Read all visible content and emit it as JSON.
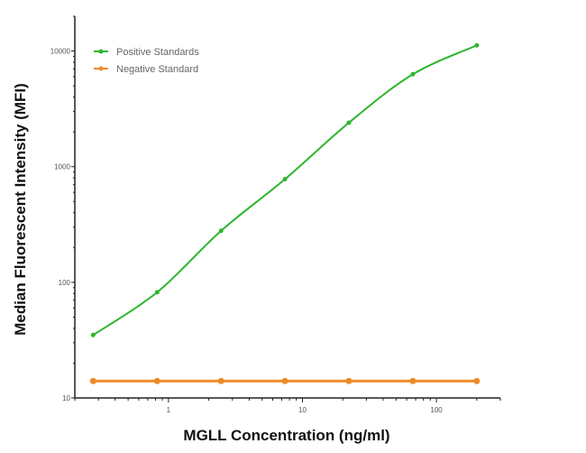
{
  "chart_data": {
    "type": "line",
    "title": "",
    "xlabel": "MGLL Concentration (ng/ml)",
    "ylabel": "Median  Fluorescent Intensity  (MFI)",
    "x_scale": "log",
    "y_scale": "log",
    "xlim": [
      0.2,
      300
    ],
    "ylim": [
      10,
      20000
    ],
    "x_ticks": [
      {
        "v": 1,
        "label": "1"
      },
      {
        "v": 10,
        "label": "10"
      },
      {
        "v": 100,
        "label": "100"
      }
    ],
    "y_ticks": [
      {
        "v": 10,
        "label": "10"
      },
      {
        "v": 100,
        "label": "100"
      },
      {
        "v": 1000,
        "label": "1000"
      },
      {
        "v": 10000,
        "label": "10000"
      }
    ],
    "grid": false,
    "legend_position": "top-left",
    "x": [
      0.274,
      0.823,
      2.47,
      7.41,
      22.2,
      66.7,
      200
    ],
    "series": [
      {
        "name": "Positive Standards",
        "color": "#2db52d",
        "values": [
          35,
          82,
          279,
          780,
          2400,
          6300,
          11200
        ]
      },
      {
        "name": "Negative Standard",
        "color": "#f08a2a",
        "values": [
          14,
          14,
          14,
          14,
          14,
          14,
          14
        ]
      }
    ]
  }
}
